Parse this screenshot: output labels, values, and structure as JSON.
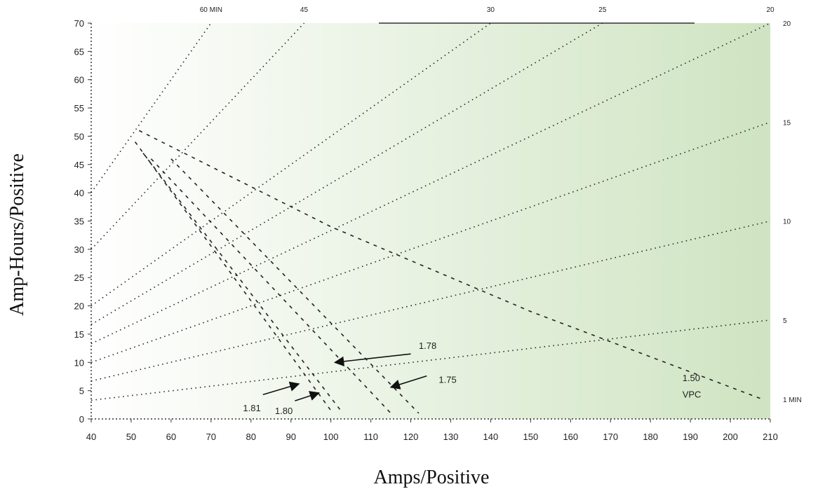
{
  "chart_data": {
    "type": "line",
    "title": "",
    "xlabel": "Amps/Positive",
    "ylabel": "Amp-Hours/Positive",
    "xlim": [
      40,
      210
    ],
    "ylim": [
      0,
      70
    ],
    "x_ticks": [
      "40",
      "50",
      "60",
      "70",
      "80",
      "90",
      "100",
      "110",
      "120",
      "130",
      "140",
      "150",
      "160",
      "170",
      "180",
      "190",
      "200",
      "210"
    ],
    "y_ticks": [
      "0",
      "5",
      "10",
      "15",
      "20",
      "25",
      "30",
      "35",
      "40",
      "45",
      "50",
      "55",
      "60",
      "65",
      "70"
    ],
    "minute_axis_right": {
      "labels": [
        {
          "text": "1 MIN",
          "y": 3.5
        },
        {
          "text": "5",
          "y": 17.5
        },
        {
          "text": "10",
          "y": 35
        },
        {
          "text": "15",
          "y": 52.5
        },
        {
          "text": "20",
          "y": 70
        }
      ]
    },
    "minute_axis_top": {
      "labels": [
        {
          "text": "60 MIN",
          "x": 70
        },
        {
          "text": "45",
          "x": 93.3
        },
        {
          "text": "30",
          "x": 140
        },
        {
          "text": "25",
          "x": 168
        },
        {
          "text": "20",
          "x": 210
        }
      ]
    },
    "grid": false,
    "background_gradient": [
      "#ffffff",
      "#cfe4c2"
    ],
    "series": [
      {
        "name": "1.81",
        "kind": "voltage",
        "points": [
          [
            51,
            49
          ],
          [
            100,
            1.5
          ]
        ]
      },
      {
        "name": "1.80",
        "kind": "voltage",
        "points": [
          [
            53,
            47
          ],
          [
            103,
            1
          ]
        ]
      },
      {
        "name": "1.78",
        "kind": "voltage",
        "points": [
          [
            55,
            46
          ],
          [
            115,
            1
          ]
        ]
      },
      {
        "name": "1.75",
        "kind": "voltage",
        "points": [
          [
            60,
            46
          ],
          [
            122,
            1
          ]
        ]
      },
      {
        "name": "1.50 VPC",
        "kind": "voltage",
        "points": [
          [
            52,
            51
          ],
          [
            100,
            34
          ],
          [
            150,
            19
          ],
          [
            208,
            3.5
          ]
        ]
      },
      {
        "name": "60 MIN",
        "kind": "time",
        "points": [
          [
            40,
            40
          ],
          [
            70,
            70
          ]
        ]
      },
      {
        "name": "45",
        "kind": "time",
        "points": [
          [
            40,
            30
          ],
          [
            93.3,
            70
          ]
        ]
      },
      {
        "name": "30",
        "kind": "time",
        "points": [
          [
            40,
            20
          ],
          [
            140,
            70
          ]
        ]
      },
      {
        "name": "25",
        "kind": "time",
        "points": [
          [
            40,
            16.7
          ],
          [
            168,
            70
          ]
        ]
      },
      {
        "name": "20",
        "kind": "time",
        "points": [
          [
            40,
            13.3
          ],
          [
            210,
            70
          ]
        ]
      },
      {
        "name": "15",
        "kind": "time",
        "points": [
          [
            40,
            10
          ],
          [
            210,
            52.5
          ]
        ]
      },
      {
        "name": "10",
        "kind": "time",
        "points": [
          [
            40,
            6.7
          ],
          [
            210,
            35
          ]
        ]
      },
      {
        "name": "5",
        "kind": "time",
        "points": [
          [
            40,
            3.3
          ],
          [
            210,
            17.5
          ]
        ]
      }
    ],
    "annotations": [
      {
        "text": "1.81",
        "x": 78,
        "y": 2
      },
      {
        "text": "1.80",
        "x": 86,
        "y": 1.5
      },
      {
        "text": "1.78",
        "x": 122,
        "y": 13
      },
      {
        "text": "1.75",
        "x": 127,
        "y": 7
      },
      {
        "text": "1.50",
        "x": 188,
        "y": 7.3
      },
      {
        "text": "VPC",
        "x": 188,
        "y": 4.4
      }
    ],
    "arrows": [
      {
        "from": [
          83,
          4.3
        ],
        "to": [
          92,
          6.2
        ]
      },
      {
        "from": [
          91,
          3.2
        ],
        "to": [
          97,
          4.6
        ]
      },
      {
        "from": [
          120,
          11.5
        ],
        "to": [
          101,
          10
        ]
      },
      {
        "from": [
          124,
          7.6
        ],
        "to": [
          115,
          5.6
        ]
      }
    ]
  }
}
